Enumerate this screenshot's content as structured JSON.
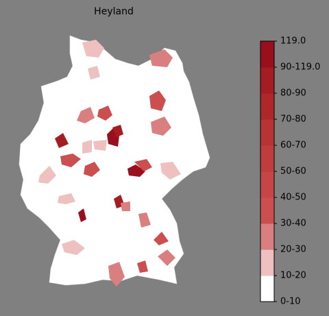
{
  "title": "Heyland",
  "colorbar": {
    "ticks": [
      "0-10",
      "10-20",
      "20-30",
      "30-40",
      "40-50",
      "50-60",
      "60-70",
      "70-80",
      "80-90",
      "90-119.0",
      "119.0"
    ],
    "colors": [
      "#ffffff",
      "#efc0c0",
      "#da7f7f",
      "#cb4f4f",
      "#c54646",
      "#c03d3d",
      "#b83333",
      "#ae2829",
      "#a41d22",
      "#9a0f1e"
    ]
  }
}
